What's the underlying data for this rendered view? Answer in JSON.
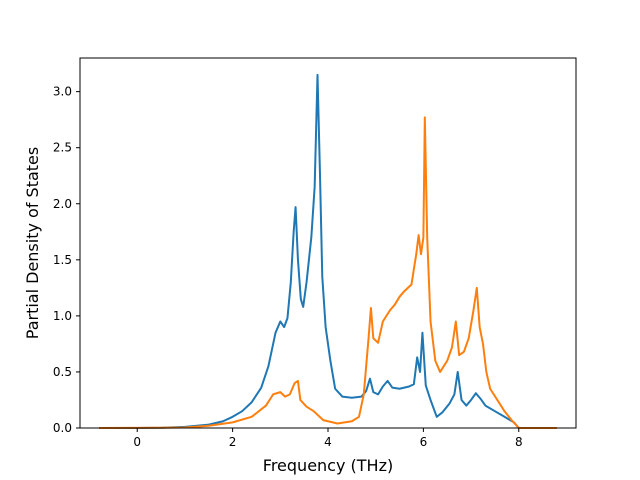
{
  "chart_data": {
    "type": "line",
    "title": "",
    "xlabel": "Frequency (THz)",
    "ylabel": "Partial Density of States",
    "xlim": [
      -1.2,
      9.2
    ],
    "ylim": [
      0,
      3.3
    ],
    "xticks": [
      0,
      2,
      4,
      6,
      8
    ],
    "yticks": [
      0.0,
      0.5,
      1.0,
      1.5,
      2.0,
      2.5,
      3.0
    ],
    "xtick_labels": [
      "0",
      "2",
      "4",
      "6",
      "8"
    ],
    "ytick_labels": [
      "0.0",
      "0.5",
      "1.0",
      "1.5",
      "2.0",
      "2.5",
      "3.0"
    ],
    "grid": false,
    "legend": "none",
    "series": [
      {
        "color": "#1f77b4",
        "points": [
          [
            -0.8,
            0
          ],
          [
            0,
            0
          ],
          [
            0.5,
            0.002
          ],
          [
            1.0,
            0.01
          ],
          [
            1.5,
            0.03
          ],
          [
            1.8,
            0.06
          ],
          [
            2.0,
            0.1
          ],
          [
            2.2,
            0.15
          ],
          [
            2.4,
            0.23
          ],
          [
            2.6,
            0.36
          ],
          [
            2.75,
            0.55
          ],
          [
            2.9,
            0.85
          ],
          [
            3.0,
            0.95
          ],
          [
            3.08,
            0.9
          ],
          [
            3.15,
            0.98
          ],
          [
            3.22,
            1.3
          ],
          [
            3.28,
            1.75
          ],
          [
            3.32,
            1.97
          ],
          [
            3.37,
            1.5
          ],
          [
            3.43,
            1.15
          ],
          [
            3.48,
            1.08
          ],
          [
            3.55,
            1.3
          ],
          [
            3.65,
            1.7
          ],
          [
            3.72,
            2.15
          ],
          [
            3.78,
            3.15
          ],
          [
            3.83,
            2.3
          ],
          [
            3.88,
            1.35
          ],
          [
            3.95,
            0.9
          ],
          [
            4.05,
            0.6
          ],
          [
            4.15,
            0.35
          ],
          [
            4.3,
            0.28
          ],
          [
            4.5,
            0.27
          ],
          [
            4.7,
            0.28
          ],
          [
            4.8,
            0.33
          ],
          [
            4.88,
            0.44
          ],
          [
            4.95,
            0.32
          ],
          [
            5.05,
            0.3
          ],
          [
            5.15,
            0.37
          ],
          [
            5.25,
            0.42
          ],
          [
            5.35,
            0.36
          ],
          [
            5.5,
            0.35
          ],
          [
            5.7,
            0.37
          ],
          [
            5.8,
            0.39
          ],
          [
            5.87,
            0.63
          ],
          [
            5.93,
            0.5
          ],
          [
            5.98,
            0.85
          ],
          [
            6.05,
            0.38
          ],
          [
            6.15,
            0.25
          ],
          [
            6.28,
            0.1
          ],
          [
            6.4,
            0.14
          ],
          [
            6.55,
            0.22
          ],
          [
            6.65,
            0.3
          ],
          [
            6.72,
            0.5
          ],
          [
            6.8,
            0.25
          ],
          [
            6.9,
            0.2
          ],
          [
            7.0,
            0.25
          ],
          [
            7.1,
            0.31
          ],
          [
            7.2,
            0.26
          ],
          [
            7.3,
            0.2
          ],
          [
            7.5,
            0.15
          ],
          [
            7.7,
            0.1
          ],
          [
            7.9,
            0.05
          ],
          [
            8.0,
            0
          ],
          [
            8.2,
            0
          ]
        ]
      },
      {
        "color": "#ff7f0e",
        "points": [
          [
            -0.8,
            0
          ],
          [
            0.5,
            0.002
          ],
          [
            1.0,
            0.005
          ],
          [
            1.5,
            0.02
          ],
          [
            2.0,
            0.05
          ],
          [
            2.4,
            0.1
          ],
          [
            2.7,
            0.2
          ],
          [
            2.85,
            0.3
          ],
          [
            3.0,
            0.32
          ],
          [
            3.1,
            0.28
          ],
          [
            3.2,
            0.3
          ],
          [
            3.3,
            0.4
          ],
          [
            3.37,
            0.42
          ],
          [
            3.42,
            0.25
          ],
          [
            3.55,
            0.19
          ],
          [
            3.7,
            0.15
          ],
          [
            3.9,
            0.07
          ],
          [
            4.2,
            0.04
          ],
          [
            4.5,
            0.06
          ],
          [
            4.65,
            0.1
          ],
          [
            4.75,
            0.3
          ],
          [
            4.85,
            0.8
          ],
          [
            4.9,
            1.07
          ],
          [
            4.95,
            0.8
          ],
          [
            5.05,
            0.76
          ],
          [
            5.15,
            0.95
          ],
          [
            5.3,
            1.05
          ],
          [
            5.4,
            1.1
          ],
          [
            5.5,
            1.17
          ],
          [
            5.6,
            1.22
          ],
          [
            5.75,
            1.28
          ],
          [
            5.85,
            1.55
          ],
          [
            5.9,
            1.72
          ],
          [
            5.95,
            1.55
          ],
          [
            6.0,
            1.7
          ],
          [
            6.03,
            2.77
          ],
          [
            6.08,
            1.7
          ],
          [
            6.15,
            0.95
          ],
          [
            6.25,
            0.6
          ],
          [
            6.35,
            0.5
          ],
          [
            6.5,
            0.6
          ],
          [
            6.6,
            0.72
          ],
          [
            6.68,
            0.95
          ],
          [
            6.75,
            0.65
          ],
          [
            6.85,
            0.68
          ],
          [
            6.95,
            0.8
          ],
          [
            7.05,
            1.05
          ],
          [
            7.12,
            1.25
          ],
          [
            7.18,
            0.9
          ],
          [
            7.25,
            0.75
          ],
          [
            7.32,
            0.5
          ],
          [
            7.4,
            0.35
          ],
          [
            7.55,
            0.25
          ],
          [
            7.7,
            0.15
          ],
          [
            7.85,
            0.07
          ],
          [
            8.0,
            0
          ],
          [
            8.8,
            0
          ]
        ]
      }
    ]
  }
}
